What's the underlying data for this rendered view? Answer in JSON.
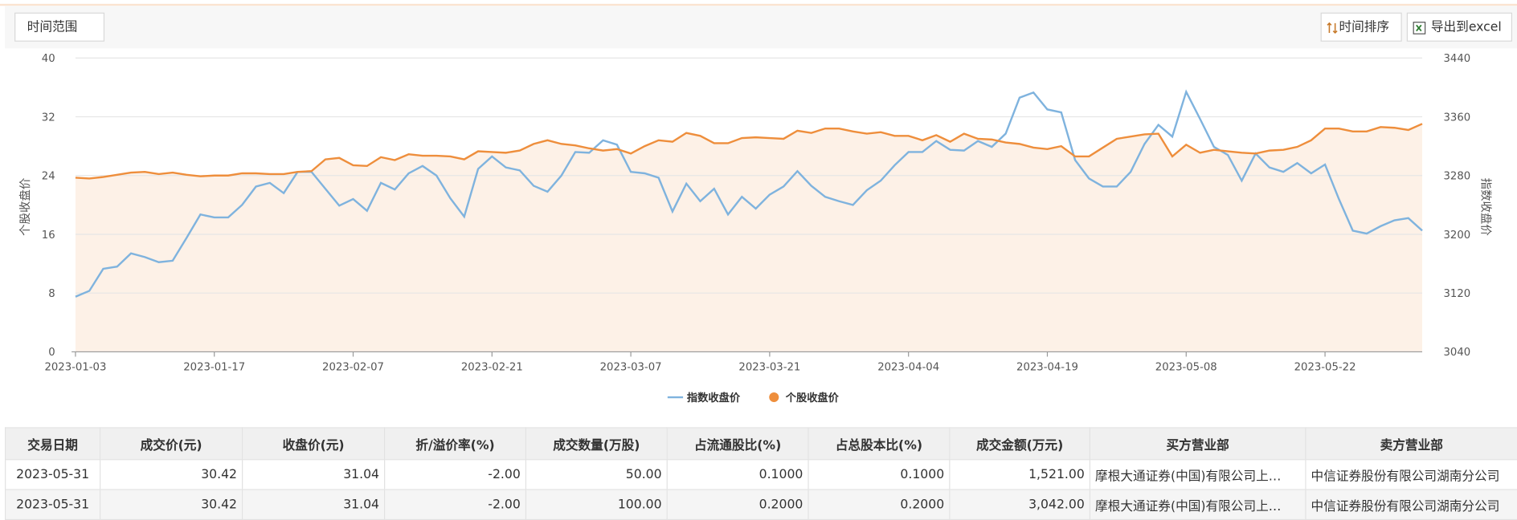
{
  "toolbar": {
    "range_button": "时间范围",
    "sort_button": "时间排序",
    "export_button": "导出到excel"
  },
  "chart_data": {
    "type": "line",
    "categories": [
      "2023-01-03",
      null,
      null,
      null,
      null,
      null,
      null,
      null,
      null,
      null,
      "2023-01-17",
      null,
      null,
      null,
      null,
      null,
      null,
      null,
      null,
      null,
      "2023-02-07",
      null,
      null,
      null,
      null,
      null,
      null,
      null,
      null,
      null,
      "2023-02-21",
      null,
      null,
      null,
      null,
      null,
      null,
      null,
      null,
      null,
      "2023-03-07",
      null,
      null,
      null,
      null,
      null,
      null,
      null,
      null,
      null,
      "2023-03-21",
      null,
      null,
      null,
      null,
      null,
      null,
      null,
      null,
      null,
      "2023-04-04",
      null,
      null,
      null,
      null,
      null,
      null,
      null,
      null,
      null,
      "2023-04-19",
      null,
      null,
      null,
      null,
      null,
      null,
      null,
      null,
      null,
      "2023-05-08",
      null,
      null,
      null,
      null,
      null,
      null,
      null,
      null,
      null,
      "2023-05-22",
      null,
      null,
      null,
      null,
      null,
      null,
      null
    ],
    "ylabel": "个股收盘价",
    "y2label": "指数收盘价",
    "ylim": [
      0,
      40
    ],
    "yticks": [
      0,
      8,
      16,
      24,
      32,
      40
    ],
    "y2lim": [
      3040,
      3440
    ],
    "y2ticks": [
      3040,
      3120,
      3200,
      3280,
      3360,
      3440
    ],
    "grid": true,
    "legend_position": "bottom",
    "series": [
      {
        "name": "指数收盘价",
        "color": "#7fb3de",
        "axis": "y2",
        "legend_symbol": "line",
        "values": [
          3115,
          3123,
          3153,
          3156,
          3174,
          3169,
          3162,
          3164,
          3195,
          3227,
          3223,
          3223,
          3240,
          3265,
          3270,
          3256,
          3285,
          3285,
          3262,
          3239,
          3248,
          3232,
          3270,
          3261,
          3283,
          3293,
          3280,
          3249,
          3224,
          3289,
          3306,
          3291,
          3287,
          3266,
          3258,
          3280,
          3312,
          3311,
          3328,
          3322,
          3285,
          3283,
          3277,
          3231,
          3269,
          3245,
          3262,
          3227,
          3251,
          3235,
          3254,
          3265,
          3286,
          3266,
          3251,
          3245,
          3240,
          3260,
          3273,
          3294,
          3312,
          3312,
          3327,
          3315,
          3314,
          3327,
          3319,
          3337,
          3386,
          3393,
          3370,
          3366,
          3301,
          3276,
          3265,
          3265,
          3285,
          3323,
          3349,
          3333,
          3394,
          3357,
          3319,
          3308,
          3273,
          3310,
          3291,
          3285,
          3297,
          3283,
          3295,
          3248,
          3205,
          3201,
          3211,
          3219,
          3222,
          3205
        ]
      },
      {
        "name": "个股收盘价",
        "color": "#ee8e3c",
        "axis": "y",
        "legend_symbol": "circle",
        "area_color": "#fdf1e7",
        "values": [
          23.7,
          23.6,
          23.8,
          24.1,
          24.4,
          24.5,
          24.2,
          24.4,
          24.1,
          23.9,
          24.0,
          24.0,
          24.3,
          24.3,
          24.2,
          24.2,
          24.5,
          24.6,
          26.2,
          26.4,
          25.4,
          25.3,
          26.5,
          26.1,
          26.9,
          26.7,
          26.7,
          26.6,
          26.2,
          27.3,
          27.2,
          27.1,
          27.4,
          28.3,
          28.8,
          28.3,
          28.1,
          27.7,
          27.4,
          27.6,
          27.0,
          28.0,
          28.8,
          28.6,
          29.8,
          29.4,
          28.4,
          28.4,
          29.1,
          29.2,
          29.1,
          29.0,
          30.1,
          29.8,
          30.4,
          30.4,
          30.0,
          29.7,
          29.9,
          29.4,
          29.4,
          28.8,
          29.5,
          28.6,
          29.7,
          29.0,
          28.9,
          28.5,
          28.3,
          27.8,
          27.6,
          28.0,
          26.6,
          26.6,
          27.8,
          29.0,
          29.3,
          29.6,
          29.7,
          26.6,
          28.2,
          27.1,
          27.5,
          27.3,
          27.1,
          27.0,
          27.4,
          27.5,
          27.9,
          28.8,
          30.4,
          30.4,
          30.0,
          30.0,
          30.6,
          30.5,
          30.2,
          31.04
        ]
      }
    ]
  },
  "table": {
    "columns": [
      "交易日期",
      "成交价(元)",
      "收盘价(元)",
      "折/溢价率(%)",
      "成交数量(万股)",
      "占流通股比(%)",
      "占总股本比(%)",
      "成交金额(万元)",
      "买方营业部",
      "卖方营业部"
    ],
    "rows": [
      [
        "2023-05-31",
        "30.42",
        "31.04",
        "-2.00",
        "50.00",
        "0.1000",
        "0.1000",
        "1,521.00",
        "摩根大通证券(中国)有限公司上…",
        "中信证券股份有限公司湖南分公司"
      ],
      [
        "2023-05-31",
        "30.42",
        "31.04",
        "-2.00",
        "100.00",
        "0.2000",
        "0.2000",
        "3,042.00",
        "摩根大通证券(中国)有限公司上…",
        "中信证券股份有限公司湖南分公司"
      ]
    ]
  }
}
